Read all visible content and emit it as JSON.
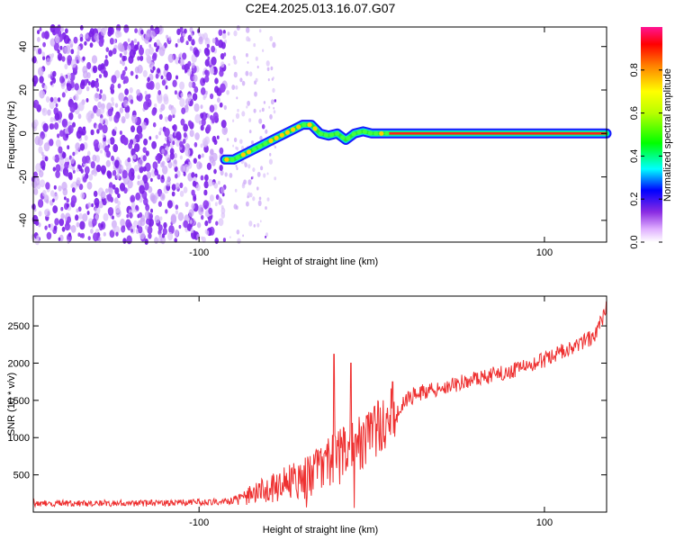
{
  "title": "C2E4.2025.013.16.07.G07",
  "chart_data": [
    {
      "type": "heatmap",
      "title": "C2E4.2025.013.16.07.G07",
      "xlabel": "Height of straight line (km)",
      "ylabel": "Frequency (Hz)",
      "xlim": [
        -196,
        136
      ],
      "ylim": [
        -50,
        49
      ],
      "xticks": [
        -100,
        100
      ],
      "yticks": [
        -40,
        -20,
        0,
        20,
        40
      ],
      "colorbar": {
        "label": "Normalized spectral amplitude",
        "range": [
          0.0,
          1.0
        ],
        "ticks": [
          0.0,
          0.2,
          0.4,
          0.6,
          0.8
        ]
      },
      "noise_region_x": [
        -196,
        -55
      ],
      "dense_noise_x": [
        -196,
        -85
      ],
      "ridge": [
        {
          "x": -85,
          "y": -12
        },
        {
          "x": -80,
          "y": -12
        },
        {
          "x": -75,
          "y": -10
        },
        {
          "x": -70,
          "y": -8
        },
        {
          "x": -65,
          "y": -6
        },
        {
          "x": -60,
          "y": -4
        },
        {
          "x": -55,
          "y": -2
        },
        {
          "x": -50,
          "y": 0
        },
        {
          "x": -45,
          "y": 2
        },
        {
          "x": -40,
          "y": 4
        },
        {
          "x": -35,
          "y": 4
        },
        {
          "x": -30,
          "y": 0
        },
        {
          "x": -25,
          "y": -1
        },
        {
          "x": -20,
          "y": 0
        },
        {
          "x": -15,
          "y": -3
        },
        {
          "x": -10,
          "y": 0
        },
        {
          "x": -5,
          "y": 1
        },
        {
          "x": 0,
          "y": 0
        },
        {
          "x": 10,
          "y": 0
        },
        {
          "x": 136,
          "y": 0
        }
      ]
    },
    {
      "type": "line",
      "xlabel": "Height of straight line (km)",
      "ylabel": "SNR (10 * v/v)",
      "xlim": [
        -196,
        136
      ],
      "ylim": [
        0,
        2900
      ],
      "xticks": [
        -100,
        100
      ],
      "yticks": [
        500,
        1000,
        1500,
        2000,
        2500
      ],
      "color": "#ee3030",
      "trend": [
        {
          "x": -196,
          "y": 120
        },
        {
          "x": -120,
          "y": 120
        },
        {
          "x": -80,
          "y": 150
        },
        {
          "x": -60,
          "y": 300
        },
        {
          "x": -45,
          "y": 420
        },
        {
          "x": -35,
          "y": 500
        },
        {
          "x": -25,
          "y": 650
        },
        {
          "x": -15,
          "y": 800
        },
        {
          "x": -5,
          "y": 950
        },
        {
          "x": 5,
          "y": 1150
        },
        {
          "x": 15,
          "y": 1400
        },
        {
          "x": 25,
          "y": 1580
        },
        {
          "x": 40,
          "y": 1680
        },
        {
          "x": 60,
          "y": 1780
        },
        {
          "x": 80,
          "y": 1900
        },
        {
          "x": 100,
          "y": 2050
        },
        {
          "x": 120,
          "y": 2250
        },
        {
          "x": 130,
          "y": 2380
        },
        {
          "x": 136,
          "y": 2750
        }
      ],
      "spikes": [
        {
          "x": -22,
          "y": 2120
        },
        {
          "x": -12,
          "y": 2000
        },
        {
          "x": 12,
          "y": 1750
        }
      ]
    }
  ]
}
